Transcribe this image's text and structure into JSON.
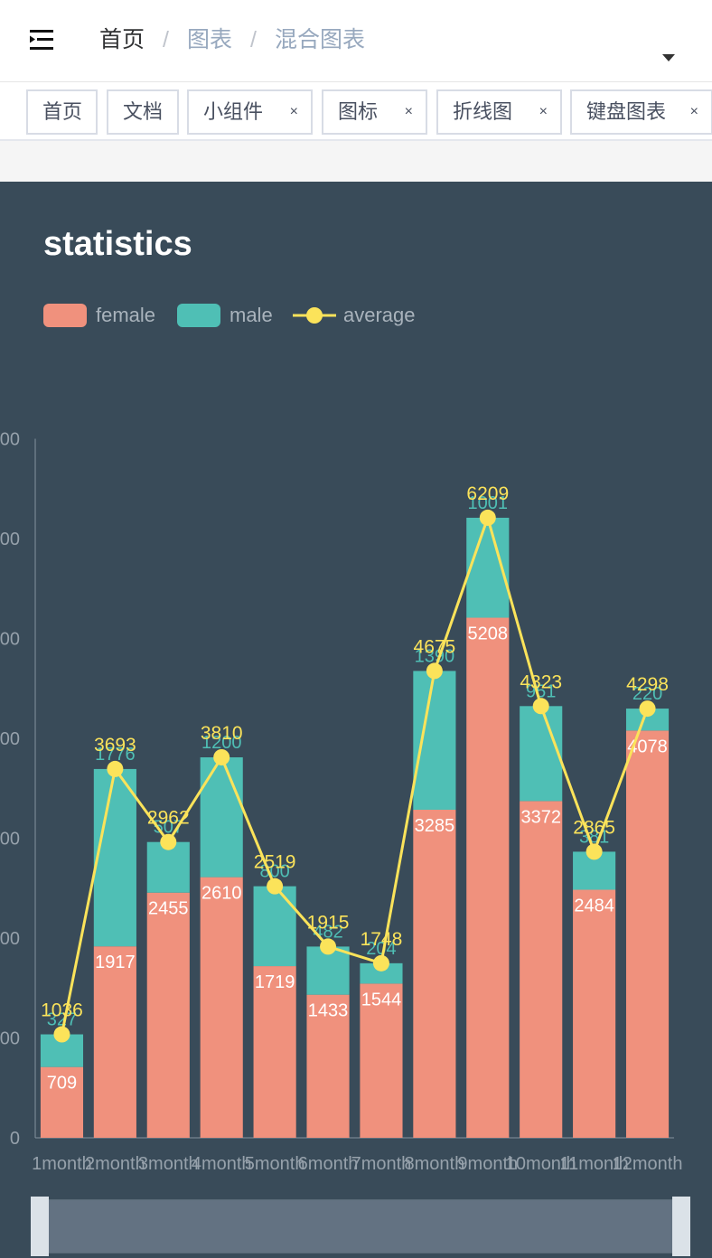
{
  "header": {
    "menu_icon": "outdent-menu-icon",
    "breadcrumb": [
      "首页",
      "图表",
      "混合图表"
    ],
    "separator": "/"
  },
  "tags": [
    {
      "label": "首页",
      "closable": false
    },
    {
      "label": "文档",
      "closable": false
    },
    {
      "label": "小组件",
      "closable": true
    },
    {
      "label": "图标",
      "closable": true
    },
    {
      "label": "折线图",
      "closable": true
    },
    {
      "label": "键盘图表",
      "closable": true
    }
  ],
  "close_glyph": "×",
  "colors": {
    "panel_bg": "#394b59",
    "female": "#f0917d",
    "male": "#4fbfb5",
    "average": "#fbe35a",
    "axis_text": "#96a1ab",
    "slider_fill": "#637282",
    "slider_handle": "#dbe2e8"
  },
  "chart_data": {
    "type": "bar",
    "title": "statistics",
    "legend_position": "top-left",
    "grid": false,
    "categories": [
      "1month",
      "2month",
      "3month",
      "4month",
      "5month",
      "6month",
      "7month",
      "8month",
      "9month",
      "10month",
      "11month",
      "12month"
    ],
    "series": [
      {
        "name": "female",
        "type": "bar",
        "stack": "total",
        "values": [
          709,
          1917,
          2455,
          2610,
          1719,
          1433,
          1544,
          3285,
          5208,
          3372,
          2484,
          4078
        ]
      },
      {
        "name": "male",
        "type": "bar",
        "stack": "total",
        "values": [
          327,
          1776,
          507,
          1200,
          800,
          482,
          204,
          1390,
          1001,
          951,
          381,
          220
        ]
      },
      {
        "name": "average",
        "type": "line",
        "values": [
          1036,
          3693,
          2962,
          3810,
          2519,
          1915,
          1748,
          4675,
          6209,
          4323,
          2865,
          4298
        ]
      }
    ],
    "yaxis_ticks": [
      "0",
      "00",
      "00",
      "00",
      "00",
      "00",
      "00",
      "00"
    ],
    "ylim": [
      0,
      7000
    ],
    "datazoom": {
      "start": 0,
      "end": 1
    }
  }
}
